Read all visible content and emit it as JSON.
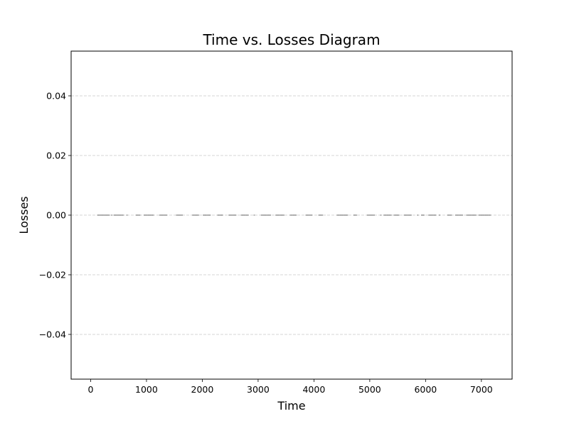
{
  "chart_data": {
    "type": "scatter",
    "title": "Time vs. Losses Diagram",
    "xlabel": "Time",
    "ylabel": "Losses",
    "xlim": [
      -350,
      7550
    ],
    "ylim": [
      -0.055,
      0.055
    ],
    "x_ticks": [
      0,
      1000,
      2000,
      3000,
      4000,
      5000,
      6000,
      7000
    ],
    "x_tick_labels": [
      "0",
      "1000",
      "2000",
      "3000",
      "4000",
      "5000",
      "6000",
      "7000"
    ],
    "y_ticks": [
      -0.04,
      -0.02,
      0.0,
      0.02,
      0.04
    ],
    "y_tick_labels": [
      "−0.04",
      "−0.02",
      "0.00",
      "0.02",
      "0.04"
    ],
    "grid": "y-dashed",
    "point_color": "#555555",
    "grid_color": "#c8c8c8",
    "series": [
      {
        "x": [
          130,
          150,
          170,
          190,
          210,
          230,
          250,
          270,
          290,
          310,
          330,
          380,
          420,
          440,
          460,
          480,
          500,
          520,
          540,
          560,
          580,
          650,
          820,
          840,
          860,
          880,
          960,
          980,
          1000,
          1020,
          1040,
          1060,
          1080,
          1100,
          1120,
          1240,
          1260,
          1280,
          1300,
          1320,
          1340,
          1360,
          1540,
          1560,
          1580,
          1600,
          1620,
          1640,
          1830,
          1850,
          1870,
          1890,
          1910,
          1930,
          2020,
          2040,
          2060,
          2080,
          2100,
          2120,
          2140,
          2280,
          2300,
          2320,
          2340,
          2360,
          2480,
          2500,
          2520,
          2540,
          2560,
          2580,
          2600,
          2700,
          2720,
          2740,
          2760,
          2780,
          2800,
          2820,
          2930,
          3060,
          3080,
          3100,
          3120,
          3140,
          3160,
          3180,
          3200,
          3220,
          3320,
          3340,
          3360,
          3380,
          3400,
          3420,
          3440,
          3460,
          3580,
          3600,
          3620,
          3640,
          3660,
          3680,
          3860,
          3880,
          3900,
          3920,
          3940,
          3960,
          4090,
          4110,
          4130,
          4150,
          4420,
          4440,
          4460,
          4480,
          4500,
          4520,
          4540,
          4560,
          4580,
          4600,
          4720,
          4740,
          4760,
          4960,
          4980,
          5000,
          5020,
          5040,
          5060,
          5080,
          5200,
          5260,
          5280,
          5300,
          5320,
          5340,
          5360,
          5380,
          5440,
          5460,
          5480,
          5500,
          5520,
          5620,
          5640,
          5660,
          5680,
          5700,
          5720,
          5740,
          5860,
          5930,
          5950,
          5970,
          6060,
          6080,
          6100,
          6120,
          6140,
          6160,
          6180,
          6250,
          6400,
          6420,
          6440,
          6460,
          6540,
          6560,
          6580,
          6600,
          6620,
          6640,
          6660,
          6740,
          6760,
          6780,
          6800,
          6820,
          6840,
          6860,
          6880,
          6900,
          6960,
          6980,
          7000,
          7020,
          7040,
          7060,
          7080,
          7100,
          7120,
          7140,
          7160
        ],
        "y": [
          0,
          0,
          0,
          0,
          0,
          0,
          0,
          0,
          0,
          0,
          0,
          0,
          0,
          0,
          0,
          0,
          0,
          0,
          0,
          0,
          0,
          0,
          0,
          0,
          0,
          0,
          0,
          0,
          0,
          0,
          0,
          0,
          0,
          0,
          0,
          0,
          0,
          0,
          0,
          0,
          0,
          0,
          0,
          0,
          0,
          0,
          0,
          0,
          0,
          0,
          0,
          0,
          0,
          0,
          0,
          0,
          0,
          0,
          0,
          0,
          0,
          0,
          0,
          0,
          0,
          0,
          0,
          0,
          0,
          0,
          0,
          0,
          0,
          0,
          0,
          0,
          0,
          0,
          0,
          0,
          0,
          0,
          0,
          0,
          0,
          0,
          0,
          0,
          0,
          0,
          0,
          0,
          0,
          0,
          0,
          0,
          0,
          0,
          0,
          0,
          0,
          0,
          0,
          0,
          0,
          0,
          0,
          0,
          0,
          0,
          0,
          0,
          0,
          0,
          0,
          0,
          0,
          0,
          0,
          0,
          0,
          0,
          0,
          0,
          0,
          0,
          0,
          0,
          0,
          0,
          0,
          0,
          0,
          0,
          0,
          0,
          0,
          0,
          0,
          0,
          0,
          0,
          0,
          0,
          0,
          0,
          0,
          0,
          0,
          0,
          0,
          0,
          0,
          0,
          0,
          0,
          0,
          0,
          0,
          0,
          0,
          0,
          0,
          0,
          0,
          0,
          0,
          0,
          0,
          0,
          0,
          0,
          0,
          0,
          0,
          0,
          0,
          0,
          0,
          0,
          0,
          0,
          0,
          0,
          0,
          0,
          0,
          0,
          0,
          0,
          0,
          0,
          0,
          0,
          0,
          0,
          0
        ]
      }
    ]
  }
}
